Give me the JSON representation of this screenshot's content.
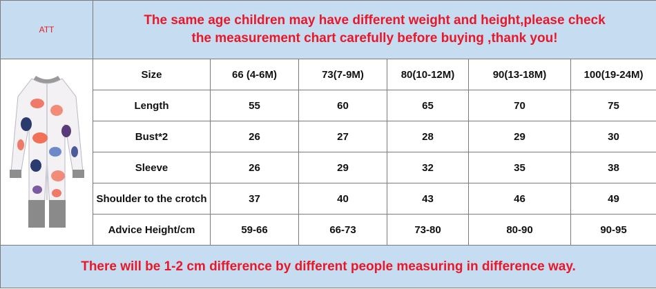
{
  "att_label": "ATT",
  "banner": {
    "line1": "The same age children may have different weight and height,please check",
    "line2": "the measurement chart carefully before buying ,thank you!"
  },
  "product_image": "baby-romper-floral-print",
  "table": {
    "header": [
      "Size",
      "66 (4-6M)",
      "73(7-9M)",
      "80(10-12M)",
      "90(13-18M)",
      "100(19-24M)"
    ],
    "rows": [
      {
        "label": "Length",
        "values": [
          "55",
          "60",
          "65",
          "70",
          "75"
        ]
      },
      {
        "label": "Bust*2",
        "values": [
          "26",
          "27",
          "28",
          "29",
          "30"
        ]
      },
      {
        "label": "Sleeve",
        "values": [
          "26",
          "29",
          "32",
          "35",
          "38"
        ]
      },
      {
        "label": "Shoulder to the crotch",
        "values": [
          "37",
          "40",
          "43",
          "46",
          "49"
        ]
      },
      {
        "label": "Advice Height/cm",
        "values": [
          "59-66",
          "66-73",
          "73-80",
          "80-90",
          "90-95"
        ]
      }
    ]
  },
  "footer": "There will be 1-2 cm difference by different people measuring in difference way.",
  "colors": {
    "accent_text": "#e8182a",
    "banner_bg": "#c6dcf0",
    "border": "#7a7a7a"
  }
}
